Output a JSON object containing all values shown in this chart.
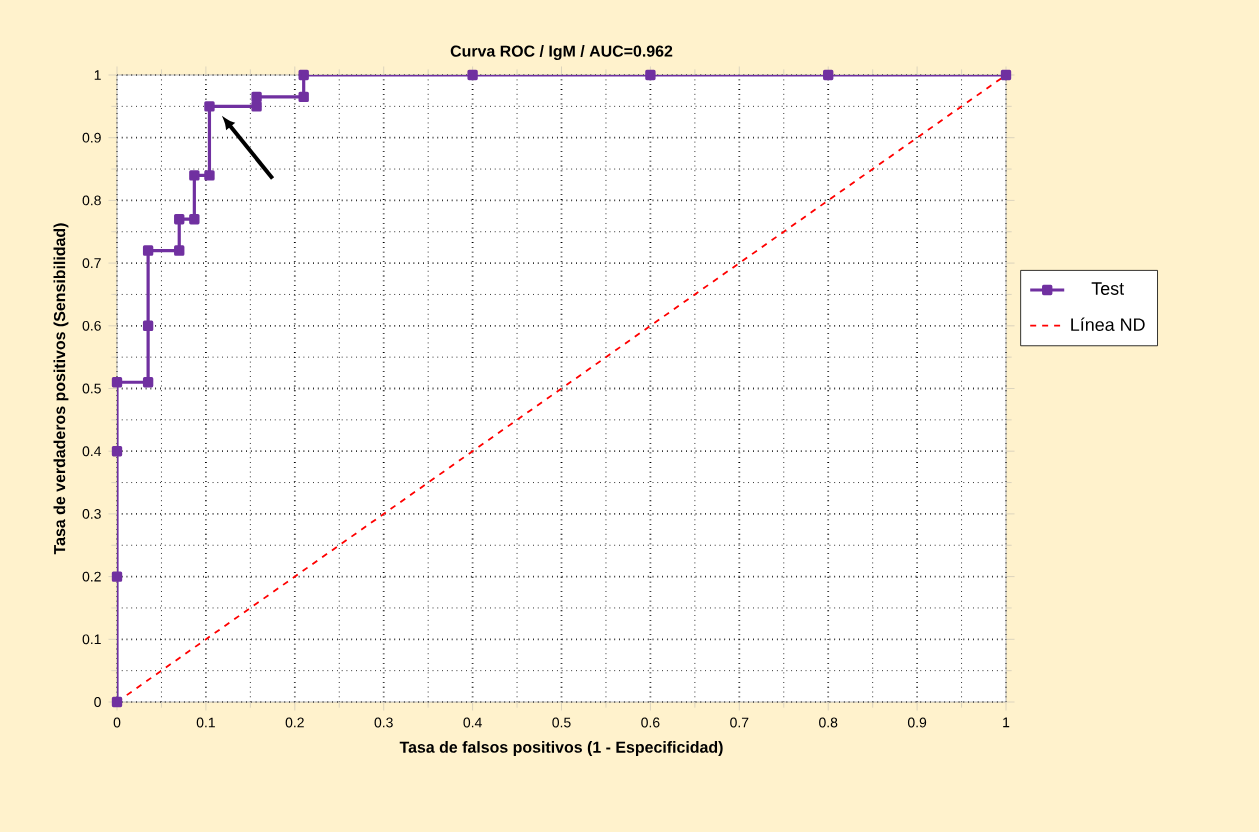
{
  "chart_data": {
    "type": "line",
    "title": "Curva ROC / IgM / AUC=0.962",
    "xlabel": "Tasa de falsos positivos (1 - Especificidad)",
    "ylabel": "Tasa de verdaderos positivos (Sensibilidad)",
    "xlim": [
      0,
      1
    ],
    "ylim": [
      0,
      1
    ],
    "xticks": [
      0,
      0.1,
      0.2,
      0.3,
      0.4,
      0.5,
      0.6,
      0.7,
      0.8,
      0.9,
      1
    ],
    "yticks": [
      0,
      0.1,
      0.2,
      0.3,
      0.4,
      0.5,
      0.6,
      0.7,
      0.8,
      0.9,
      1
    ],
    "grid": true,
    "legend": "right",
    "series": [
      {
        "name": "Test",
        "color": "#7030a0",
        "marker": "square",
        "line_style": "solid",
        "x": [
          0,
          0,
          0,
          0,
          0.035,
          0.035,
          0.035,
          0.07,
          0.07,
          0.087,
          0.087,
          0.104,
          0.104,
          0.157,
          0.157,
          0.21,
          0.21,
          0.4,
          0.6,
          0.8,
          1
        ],
        "values": [
          0,
          0.2,
          0.4,
          0.51,
          0.51,
          0.6,
          0.72,
          0.72,
          0.77,
          0.77,
          0.84,
          0.84,
          0.95,
          0.95,
          0.965,
          0.965,
          1,
          1,
          1,
          1,
          1
        ]
      },
      {
        "name": "Línea ND",
        "color": "#ff0000",
        "marker": "none",
        "line_style": "dashed",
        "x": [
          0,
          1
        ],
        "values": [
          0,
          1
        ]
      }
    ]
  }
}
